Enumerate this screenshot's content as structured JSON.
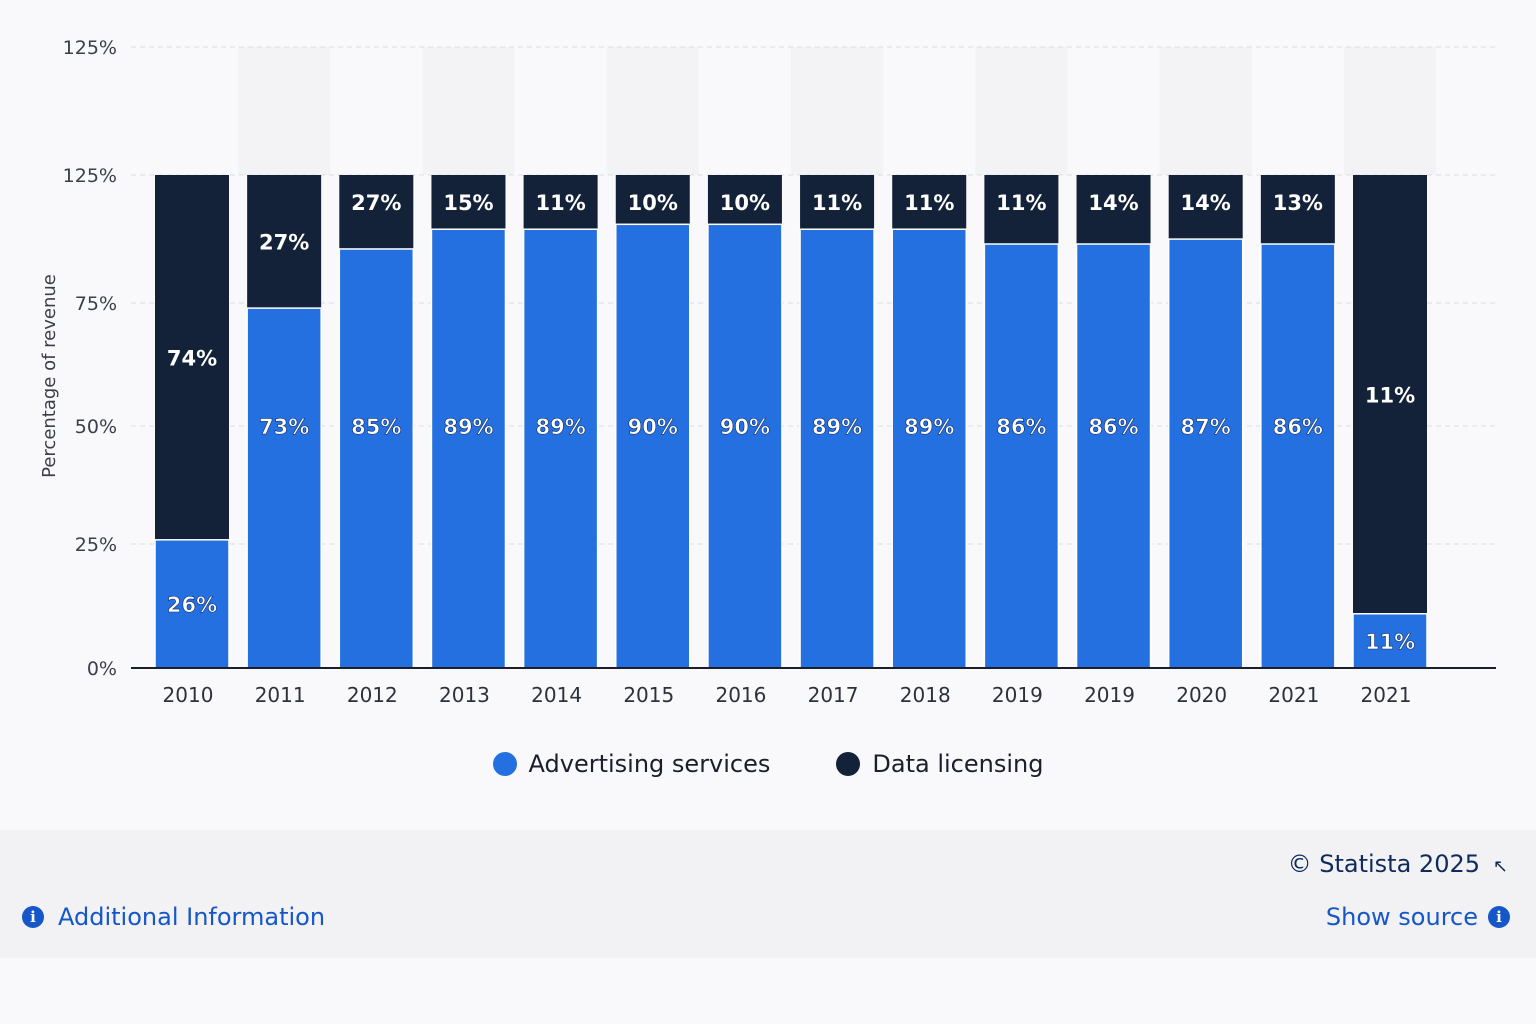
{
  "chart_data": {
    "type": "bar",
    "stacked": true,
    "ylabel": "Percentage of revenue",
    "y_ticks": [
      "0%",
      "25%",
      "50%",
      "75%",
      "125%",
      "125%"
    ],
    "grid": true,
    "legend_position": "bottom",
    "categories": [
      "2010",
      "2011",
      "2012",
      "2013",
      "2014",
      "2015",
      "2016",
      "2017",
      "2018",
      "2019",
      "2019",
      "2020",
      "2021",
      "2021"
    ],
    "series": [
      {
        "name": "Advertising services",
        "color": "#2570e0",
        "values": [
          26,
          73,
          85,
          89,
          89,
          90,
          90,
          89,
          89,
          86,
          86,
          87,
          86,
          11
        ],
        "labels": [
          "26%",
          "73%",
          "85%",
          "89%",
          "89%",
          "90%",
          "90%",
          "89%",
          "89%",
          "86%",
          "86%",
          "87%",
          "86%",
          "11%"
        ]
      },
      {
        "name": "Data licensing",
        "color": "#132238",
        "values": [
          74,
          27,
          27,
          15,
          11,
          10,
          10,
          11,
          11,
          11,
          14,
          14,
          13,
          11
        ],
        "labels": [
          "74%",
          "27%",
          "27%",
          "15%",
          "11%",
          "10%",
          "10%",
          "11%",
          "11%",
          "11%",
          "14%",
          "14%",
          "13%",
          "11%"
        ]
      }
    ]
  },
  "footer": {
    "copyright": "© Statista 2025",
    "additional_info": "Additional Information",
    "show_source": "Show source"
  }
}
